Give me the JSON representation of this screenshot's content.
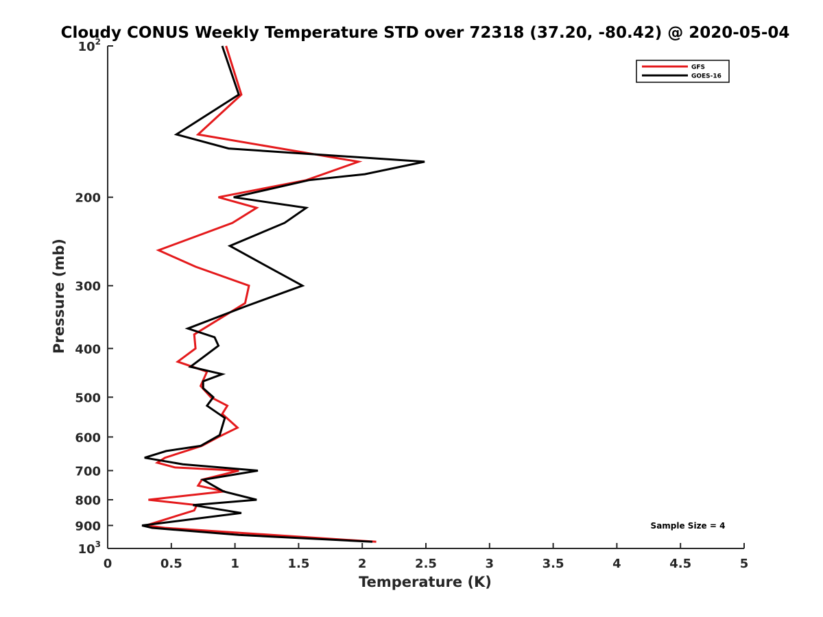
{
  "chart_data": {
    "type": "line",
    "title": "Cloudy CONUS Weekly Temperature STD over 72318 (37.20, -80.42) @ 2020-05-04",
    "xlabel": "Temperature (K)",
    "ylabel": "Pressure (mb)",
    "xlim": [
      0,
      5
    ],
    "ylim": [
      100,
      1000
    ],
    "y_scale": "log",
    "y_reversed": true,
    "xticks": [
      "0",
      "0.5",
      "1",
      "1.5",
      "2",
      "2.5",
      "3",
      "3.5",
      "4",
      "4.5",
      "5"
    ],
    "yticks": [
      {
        "value": 100,
        "base": "10",
        "exp": "2"
      },
      {
        "value": 200,
        "label": "200"
      },
      {
        "value": 300,
        "label": "300"
      },
      {
        "value": 400,
        "label": "400"
      },
      {
        "value": 500,
        "label": "500"
      },
      {
        "value": 600,
        "label": "600"
      },
      {
        "value": 700,
        "label": "700"
      },
      {
        "value": 800,
        "label": "800"
      },
      {
        "value": 900,
        "label": "900"
      },
      {
        "value": 1000,
        "base": "10",
        "exp": "3"
      }
    ],
    "legend_position": "top-right",
    "annotation": "Sample Size = 4",
    "series": [
      {
        "name": "GFS",
        "color": "#e41a1c",
        "x": [
          0.93,
          1.05,
          0.71,
          1.97,
          1.56,
          0.87,
          1.17,
          0.98,
          0.4,
          0.69,
          1.11,
          1.08,
          0.68,
          0.69,
          0.55,
          0.78,
          0.73,
          0.81,
          0.94,
          0.9,
          1.02,
          0.87,
          0.74,
          0.45,
          0.39,
          0.53,
          1.03,
          0.74,
          0.71,
          0.92,
          0.32,
          0.7,
          0.68,
          0.3,
          0.45,
          2.11
        ],
        "y": [
          100,
          125,
          150,
          170,
          185,
          200,
          210,
          225,
          255,
          275,
          300,
          325,
          375,
          400,
          425,
          445,
          475,
          500,
          520,
          540,
          575,
          600,
          625,
          660,
          675,
          690,
          700,
          730,
          750,
          770,
          800,
          820,
          840,
          900,
          910,
          970
        ]
      },
      {
        "name": "GOES-16",
        "color": "#000000",
        "x": [
          0.9,
          1.03,
          0.54,
          0.95,
          2.49,
          2.02,
          1.58,
          0.99,
          1.56,
          1.39,
          0.96,
          1.2,
          1.53,
          1.08,
          0.63,
          0.84,
          0.87,
          0.65,
          0.9,
          0.75,
          0.75,
          0.83,
          0.78,
          0.92,
          0.88,
          0.73,
          0.46,
          0.29,
          0.59,
          1.18,
          0.75,
          0.83,
          0.91,
          1.17,
          0.67,
          1.05,
          0.27,
          0.35,
          1.03,
          2.08
        ],
        "y": [
          100,
          125,
          150,
          160,
          170,
          180,
          185,
          200,
          210,
          225,
          250,
          270,
          300,
          330,
          365,
          380,
          395,
          435,
          450,
          465,
          480,
          500,
          520,
          550,
          595,
          625,
          640,
          660,
          680,
          700,
          730,
          750,
          770,
          800,
          820,
          850,
          900,
          910,
          940,
          970
        ]
      }
    ]
  }
}
